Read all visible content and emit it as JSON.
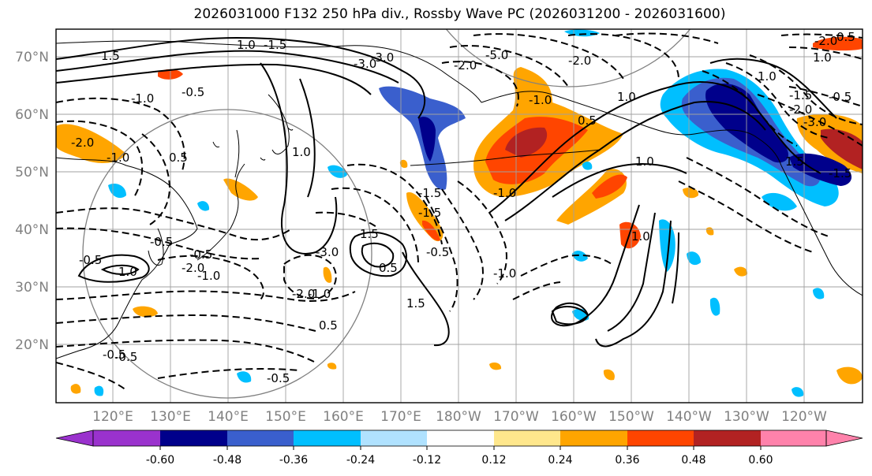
{
  "title": "2026031000 F132 250 hPa div., Rossby Wave PC (2026031200 - 2026031600)",
  "colors": {
    "frame": "#000000",
    "grid": "#a0a0a0",
    "coast": "#000000",
    "axis_label": "#808080",
    "neg_extend": "#9a32cd",
    "pos_extend": "#ff82ab"
  },
  "map": {
    "lat_labels": [
      "70°N",
      "60°N",
      "50°N",
      "40°N",
      "30°N",
      "20°N"
    ],
    "lon_labels": [
      "120°E",
      "130°E",
      "140°E",
      "150°E",
      "160°E",
      "170°E",
      "180°W",
      "170°W",
      "160°W",
      "150°W",
      "140°W",
      "130°W",
      "120°W"
    ],
    "contour_labels": [
      "1.5",
      "1.0",
      "-0.5",
      "-1.5",
      "-3.0",
      "-1.0",
      "-2.0",
      "-1.0",
      "0.5",
      "1.0",
      "-3.0",
      "-2.0",
      "-5.0",
      "-2.0",
      "1.0",
      "0.5",
      "-1.0",
      "-1.5",
      "1.0",
      "-1.5",
      "1.5",
      "-2.0",
      "-0.5",
      "-1.0",
      "-0.5",
      "-2.0",
      "-0.5",
      "0.5",
      "-0.5",
      "1.0",
      "-1.0",
      "-1.0",
      "-0.5",
      "1.5",
      "1.0",
      "-2.0",
      "0.5",
      "-0.5",
      "1.0",
      "0.5",
      "-0.5",
      "-0.5",
      "-1.5",
      "-2.0",
      "1.0",
      "1.5",
      "-3.0",
      "-1.5",
      "-1.0",
      "-3.0"
    ]
  },
  "colorbar": {
    "levels": [
      "-0.60",
      "-0.48",
      "-0.36",
      "-0.24",
      "-0.12",
      "0.12",
      "0.24",
      "0.36",
      "0.48",
      "0.60"
    ],
    "colors": [
      "#9a32cd",
      "#00008b",
      "#3a5fcd",
      "#00bfff",
      "#b0e2ff",
      "#ffffff",
      "#ffe78c",
      "#ffa500",
      "#ff4500",
      "#b22222",
      "#ff82ab"
    ]
  }
}
